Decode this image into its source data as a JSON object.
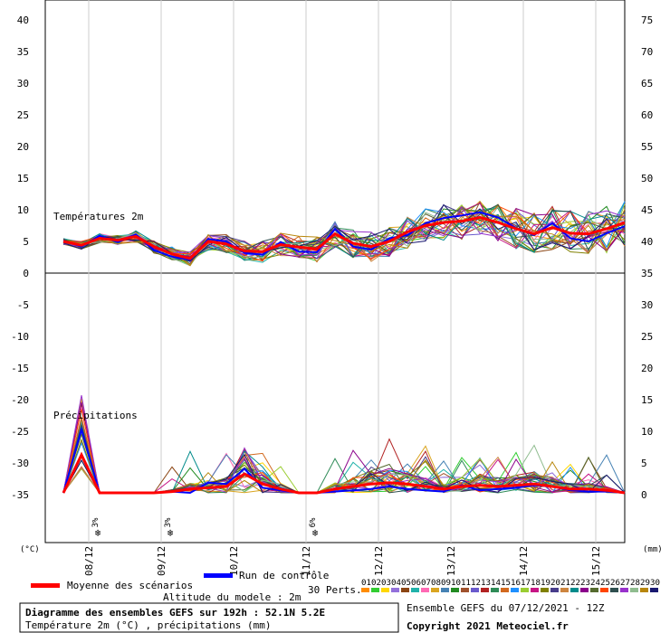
{
  "chart_data": [
    {
      "type": "line",
      "panel": "top",
      "title": "Températures 2m",
      "x_dates": [
        "08/12",
        "09/12",
        "10/12",
        "11/12",
        "12/12",
        "13/12",
        "14/12",
        "15/12"
      ],
      "y_left_ticks": [
        "40",
        "35",
        "30",
        "25",
        "20",
        "15",
        "10",
        "5",
        "0"
      ],
      "y_right_ticks": [
        "75",
        "70",
        "65",
        "60",
        "55",
        "50",
        "45",
        "40",
        "35"
      ],
      "ylim": [
        0,
        40
      ],
      "mean_series": {
        "name": "Moyenne des scénarios",
        "color": "#ff0000",
        "values": [
          5,
          4.4,
          5.5,
          5.2,
          5.8,
          4.2,
          3,
          2.3,
          5,
          4.6,
          3.5,
          3.4,
          4.5,
          4.1,
          3.8,
          6.2,
          4.7,
          4.2,
          5,
          6.5,
          7.5,
          8,
          8.2,
          8.8,
          8,
          7,
          6.2,
          7.2,
          6.3,
          6.2,
          7,
          8
        ]
      },
      "control_series": {
        "name": "Run de contrôle",
        "color": "#0000ff",
        "values": [
          5.1,
          4.2,
          5.9,
          4.9,
          6.1,
          3.6,
          2.6,
          2.1,
          5.4,
          5,
          3.2,
          2.9,
          4.9,
          3.4,
          3.3,
          7,
          4.2,
          3.7,
          5.5,
          6,
          7.9,
          8.7,
          9.1,
          9.6,
          8.8,
          7.1,
          6,
          7.9,
          5.5,
          5,
          6.3,
          7.4
        ]
      }
    },
    {
      "type": "line",
      "panel": "bottom",
      "title": "Précipitations",
      "x_dates": [
        "08/12",
        "09/12",
        "10/12",
        "11/12",
        "12/12",
        "13/12",
        "14/12",
        "15/12"
      ],
      "y_left_ticks": [
        "0",
        "-5",
        "-10",
        "-15",
        "-20",
        "-25",
        "-30",
        "-35"
      ],
      "y_right_ticks": [
        "35",
        "30",
        "25",
        "20",
        "15",
        "10",
        "5",
        "0"
      ],
      "ylim": [
        0,
        35
      ],
      "mean_series": {
        "name": "Moyenne des scénarios",
        "color": "#ff0000",
        "values": [
          0,
          3,
          0,
          0,
          0,
          0,
          0.1,
          0.3,
          0.4,
          0.5,
          1.5,
          0.7,
          0.3,
          0,
          0,
          0.3,
          0.5,
          0.7,
          0.8,
          0.7,
          0.5,
          0.3,
          0.5,
          0.6,
          0.5,
          0.6,
          0.7,
          0.5,
          0.3,
          0.3,
          0.2,
          0
        ]
      },
      "control_series": {
        "name": "Run de contrôle",
        "color": "#0000ff",
        "values": [
          0,
          5,
          0,
          0,
          0,
          0,
          0.1,
          0,
          0.8,
          0.7,
          1.9,
          0.4,
          0.2,
          0,
          0,
          0.1,
          0.2,
          0.3,
          0.5,
          0.3,
          0.2,
          0.1,
          0.6,
          0.2,
          0.3,
          0.4,
          0.6,
          0.5,
          0.2,
          0.1,
          0.1,
          0
        ]
      },
      "snow_chances": [
        {
          "date": "08/12",
          "label": "3%"
        },
        {
          "date": "09/12",
          "label": "3%"
        },
        {
          "date": "11/12",
          "label": "6%"
        }
      ]
    }
  ],
  "labels": {
    "unit_left": "(°C)",
    "unit_right": "(mm)",
    "legend_mean": "Moyenne des scénarios",
    "legend_control": "Run de contrôle",
    "altitude": "Altitude du modele : 2m",
    "perts_label": "30 Perts.",
    "perts_numbers": "010203040506070809101112131415161718192021222324252627282930",
    "info_title": "Diagramme des ensembles GEFS sur 192h : 52.1N 5.2E",
    "info_subtitle": "Température 2m (°C) , précipitations (mm)",
    "ensemble_text": "Ensemble GEFS du 07/12/2021 - 12Z",
    "copyright": "Copyright 2021 Meteociel.fr"
  },
  "colors": {
    "mean": "#ff0000",
    "control": "#0000ff",
    "perturbations": [
      "#ff8c00",
      "#32cd32",
      "#ffd700",
      "#9370db",
      "#8b4513",
      "#20b2aa",
      "#ff69b4",
      "#daa520",
      "#4682b4",
      "#228b22",
      "#a0522d",
      "#6a5acd",
      "#b22222",
      "#2e8b57",
      "#d2691e",
      "#1e90ff",
      "#9acd32",
      "#c71585",
      "#808000",
      "#483d8b",
      "#cd853f",
      "#008b8b",
      "#8b008b",
      "#556b2f",
      "#ff4500",
      "#2f4f4f",
      "#9932cc",
      "#8fbc8f",
      "#b8860b",
      "#191970"
    ]
  }
}
